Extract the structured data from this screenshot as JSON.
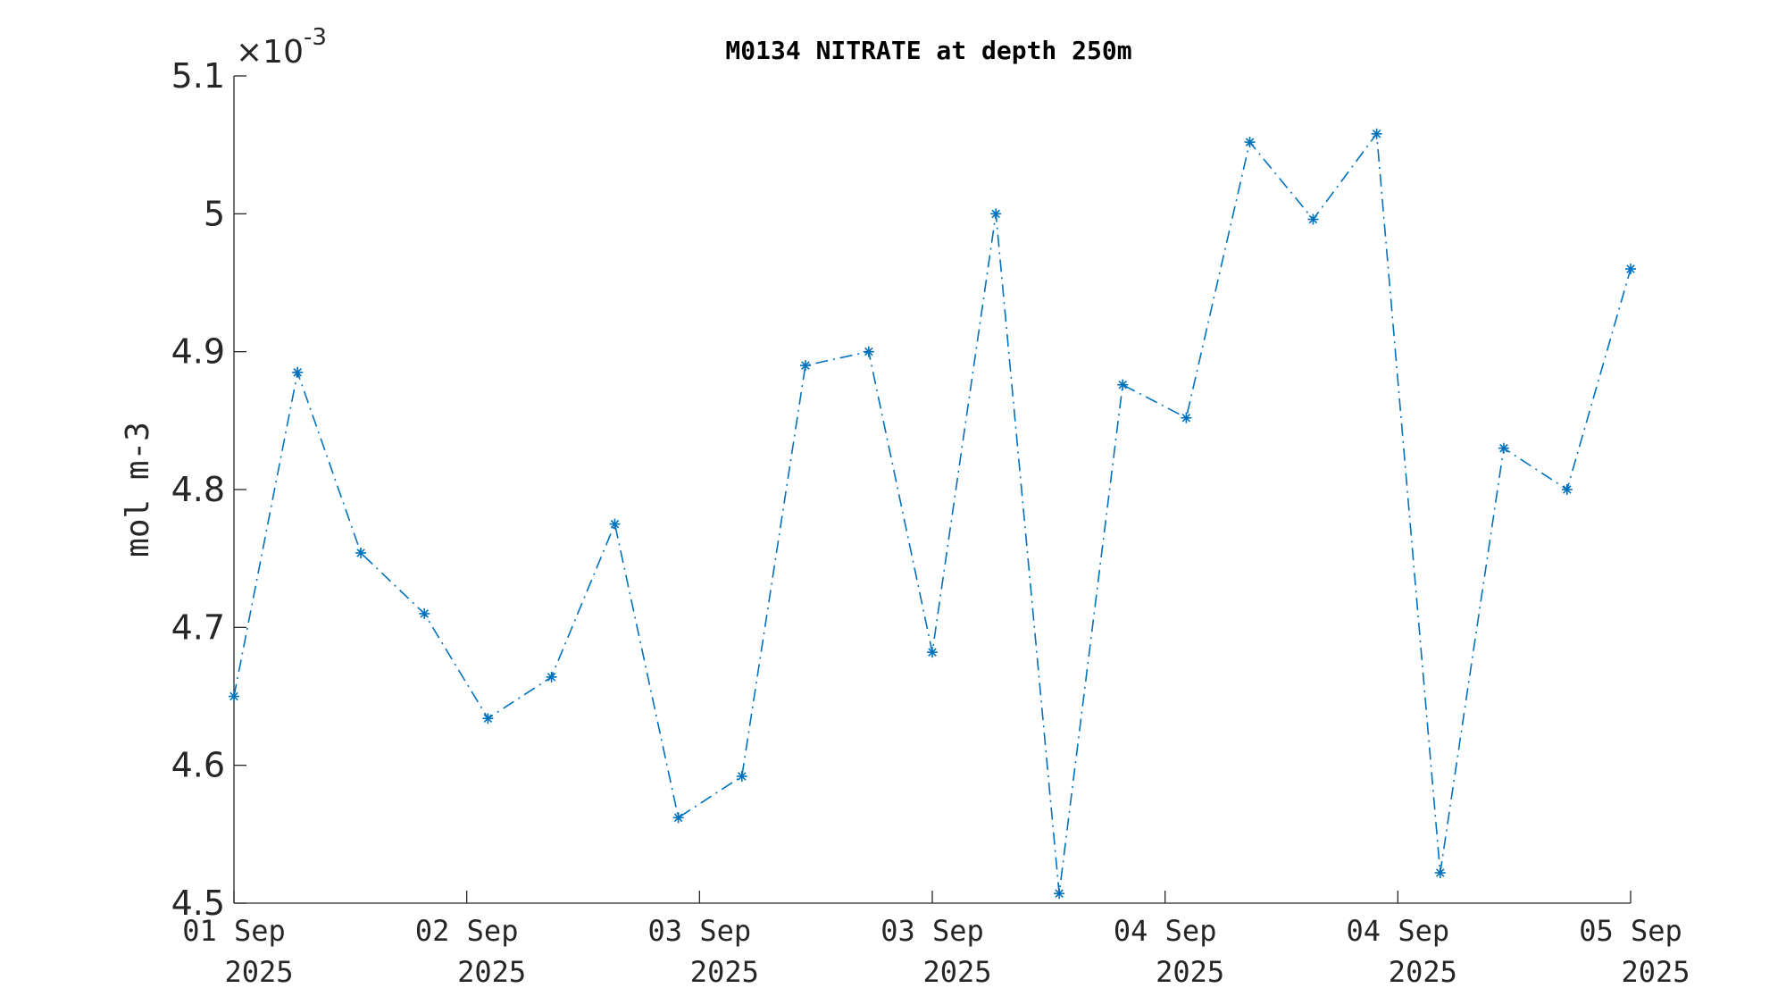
{
  "chart_data": {
    "type": "line",
    "title": "M0134 NITRATE at depth 250m",
    "ylabel": "mol m-3",
    "xlabel": "",
    "y_multiplier": {
      "times": "×10",
      "exponent": "-3"
    },
    "ylim": [
      4.5,
      5.1
    ],
    "xlim": [
      0,
      6
    ],
    "yticks": [
      4.5,
      4.6,
      4.7,
      4.8,
      4.9,
      5.0,
      5.1
    ],
    "ytick_labels": [
      "4.5",
      "4.6",
      "4.7",
      "4.8",
      "4.9",
      "5",
      "5.1"
    ],
    "xticks": [
      {
        "pos": 0,
        "line1": "01 Sep",
        "line2": "2025"
      },
      {
        "pos": 1,
        "line1": "02 Sep",
        "line2": "2025"
      },
      {
        "pos": 2,
        "line1": "03 Sep",
        "line2": "2025"
      },
      {
        "pos": 3,
        "line1": "03 Sep",
        "line2": "2025"
      },
      {
        "pos": 4,
        "line1": "04 Sep",
        "line2": "2025"
      },
      {
        "pos": 5,
        "line1": "04 Sep",
        "line2": "2025"
      },
      {
        "pos": 6,
        "line1": "05 Sep",
        "line2": "2025"
      }
    ],
    "grid": false,
    "series": [
      {
        "color": "#0072BD",
        "line_style": "dash-dot",
        "marker": "asterisk",
        "x": [
          0,
          0.273,
          0.545,
          0.818,
          1.091,
          1.364,
          1.636,
          1.909,
          2.182,
          2.455,
          2.727,
          3.0,
          3.273,
          3.545,
          3.818,
          4.091,
          4.364,
          4.636,
          4.909,
          5.182,
          5.455,
          5.727,
          6.0
        ],
        "y": [
          4.65,
          4.885,
          4.754,
          4.71,
          4.634,
          4.664,
          4.775,
          4.562,
          4.592,
          4.89,
          4.9,
          4.682,
          5.0,
          4.507,
          4.876,
          4.852,
          5.052,
          4.996,
          5.058,
          4.522,
          4.83,
          4.8,
          4.96
        ]
      }
    ]
  }
}
